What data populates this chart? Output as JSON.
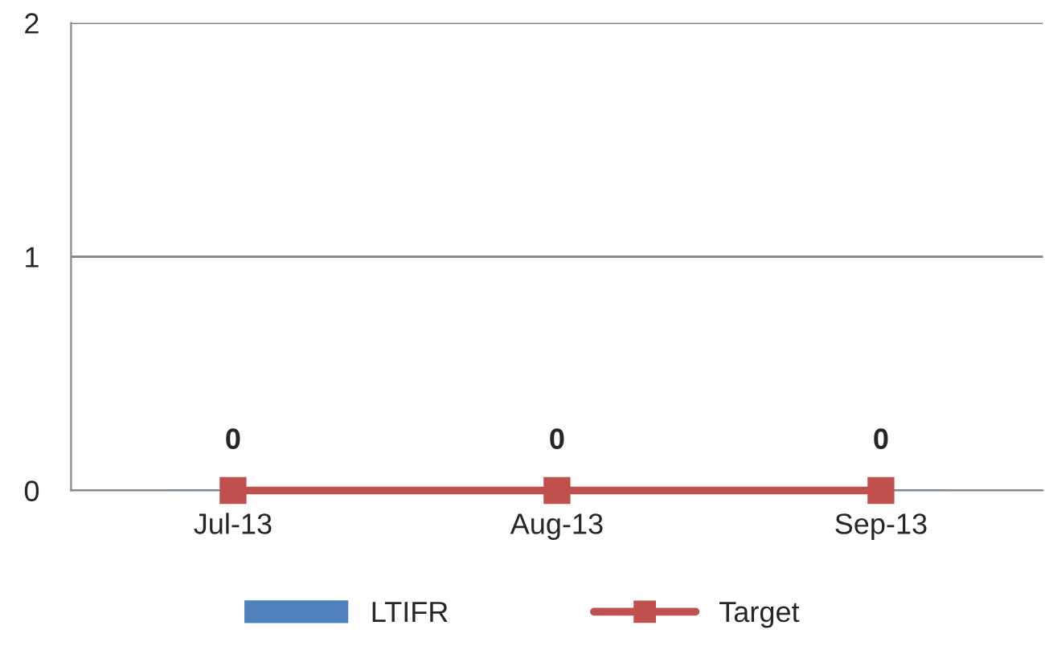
{
  "chart_data": {
    "type": "bar",
    "categories": [
      "Jul-13",
      "Aug-13",
      "Sep-13"
    ],
    "series": [
      {
        "name": "LTIFR",
        "color": "#4f81bd",
        "values": [
          0,
          0,
          0
        ],
        "value_labels": [
          "0",
          "0",
          "0"
        ]
      },
      {
        "name": "Target",
        "type": "line",
        "color": "#c0504d",
        "values": [
          0,
          0,
          0
        ],
        "marker": "square",
        "line_style": "solid"
      }
    ],
    "ylim": [
      0,
      2
    ],
    "yticks": [
      0,
      1,
      2
    ],
    "grid": "y",
    "legend": "bottom"
  }
}
